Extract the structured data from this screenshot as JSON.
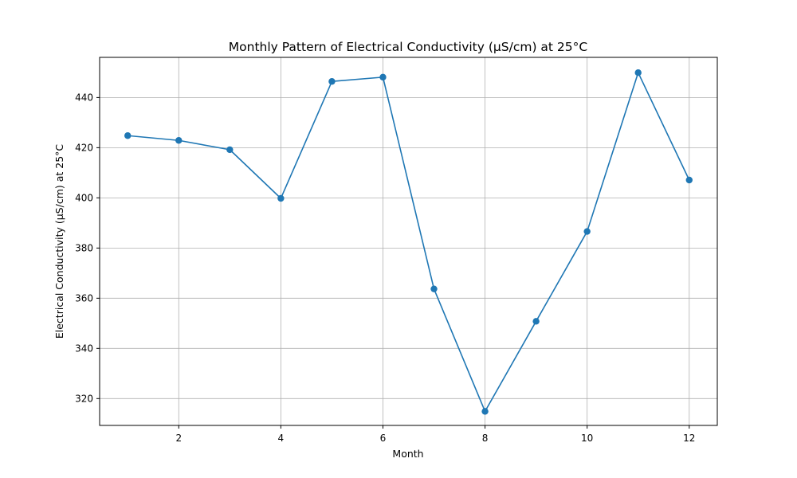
{
  "chart_data": {
    "type": "line",
    "title": "Monthly Pattern of Electrical Conductivity (µS/cm) at 25°C",
    "xlabel": "Month",
    "ylabel": "Electrical Conductivity (µS/cm) at 25°C",
    "xlim": [
      0.45,
      12.55
    ],
    "ylim": [
      309.3,
      456.0
    ],
    "xticks": [
      2,
      4,
      6,
      8,
      10,
      12
    ],
    "yticks": [
      320,
      340,
      360,
      380,
      400,
      420,
      440
    ],
    "grid": true,
    "colors": {
      "line": "#1f77b4",
      "grid": "#b0b0b0"
    },
    "series": [
      {
        "x": [
          1,
          2,
          3,
          4,
          5,
          6,
          7,
          8,
          9,
          10,
          11,
          12
        ],
        "values": [
          424.8,
          422.9,
          419.2,
          399.8,
          446.4,
          448.1,
          363.7,
          314.9,
          350.8,
          386.6,
          449.9,
          407.1
        ]
      }
    ]
  }
}
